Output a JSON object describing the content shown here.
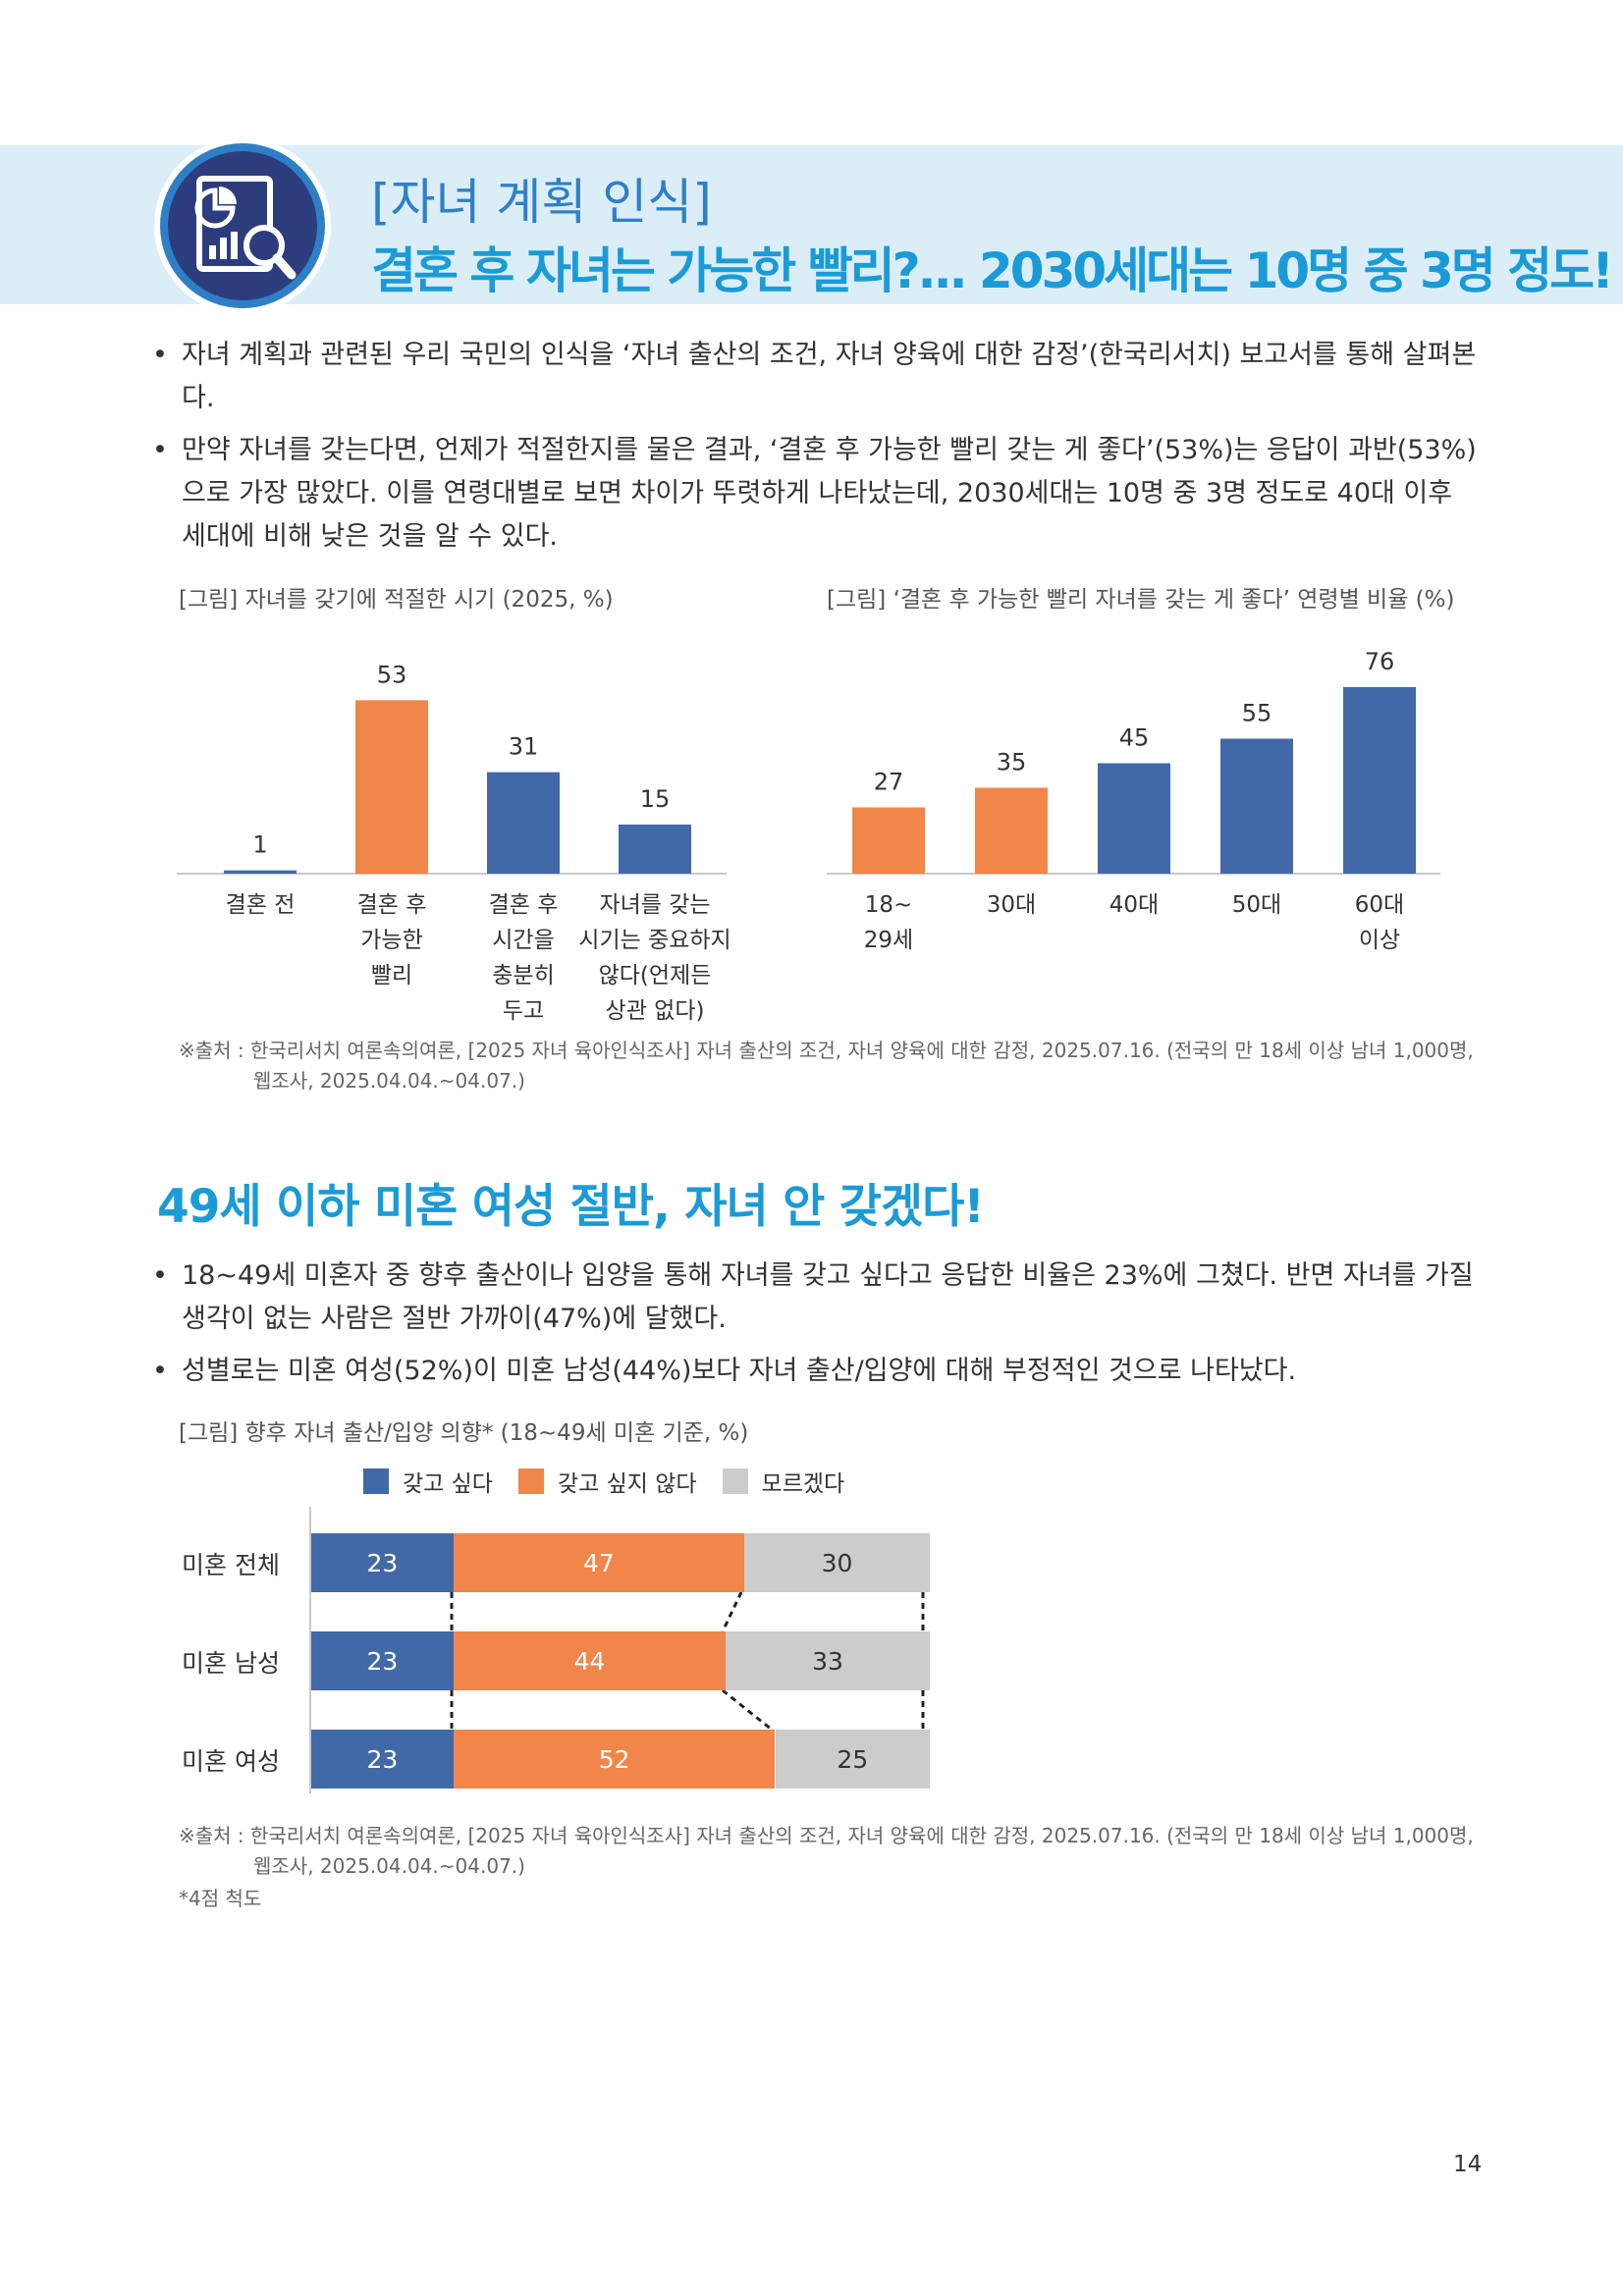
{
  "header": {
    "subtitle": "[자녀 계획 인식]",
    "title": "결혼 후 자녀는 가능한 빨리?... 2030세대는 10명 중 3명 정도!",
    "icon": "report-magnifier-icon"
  },
  "intro_bullets": [
    "자녀 계획과 관련된 우리 국민의 인식을 ‘자녀 출산의 조건, 자녀 양육에 대한 감정’(한국리서치) 보고서를 통해 살펴본다.",
    "만약 자녀를 갖는다면, 언제가 적절한지를 물은 결과, ‘결혼 후 가능한 빨리 갖는 게 좋다’(53%)는 응답이 과반(53%)으로 가장 많았다. 이를 연령대별로 보면 차이가 뚜렷하게 나타났는데, 2030세대는 10명 중 3명 정도로 40대 이후 세대에 비해 낮은 것을 알 수 있다."
  ],
  "figure1": {
    "caption": "[그림] 자녀를 갖기에 적절한 시기 (2025, %)"
  },
  "figure2": {
    "caption": "[그림] ‘결혼 후 가능한 빨리 자녀를 갖는 게 좋다’ 연령별 비율 (%)"
  },
  "source1": {
    "line1": "※출처 : 한국리서치 여론속의여론, [2025 자녀 육아인식조사] 자녀 출산의 조건, 자녀 양육에 대한 감정, 2025.07.16. (전국의 만 18세 이상 남녀 1,000명,",
    "line2": "웹조사, 2025.04.04.~04.07.)"
  },
  "section2": {
    "title": "49세 이하 미혼 여성 절반, 자녀 안 갖겠다!",
    "bullets": [
      "18~49세 미혼자 중 향후 출산이나 입양을 통해 자녀를 갖고 싶다고 응답한 비율은 23%에 그쳤다. 반면 자녀를 가질 생각이 없는 사람은 절반 가까이(47%)에 달했다.",
      "성별로는 미혼 여성(52%)이 미혼 남성(44%)보다 자녀 출산/입양에 대해 부정적인 것으로 나타났다."
    ]
  },
  "figure3": {
    "caption": "[그림] 향후 자녀 출산/입양 의향* (18~49세 미혼 기준, %)"
  },
  "source2": {
    "line1": "※출처 : 한국리서치 여론속의여론, [2025 자녀 육아인식조사] 자녀 출산의 조건, 자녀 양육에 대한 감정, 2025.07.16. (전국의 만 18세 이상 남녀 1,000명,",
    "line2": "웹조사, 2025.04.04.~04.07.)",
    "note": "*4점 척도"
  },
  "page_number": "14",
  "colors": {
    "blue": "#4169a8",
    "orange": "#f0864a",
    "gray": "#cccccc",
    "header_band": "#dbeef8",
    "title_blue": "#1a9bd7"
  },
  "chart_data": [
    {
      "type": "bar",
      "categories": [
        [
          "결혼 전"
        ],
        [
          "결혼 후",
          "가능한",
          "빨리"
        ],
        [
          "결혼 후",
          "시간을",
          "충분히",
          "두고"
        ],
        [
          "자녀를 갖는",
          "시기는 중요하지",
          "않다(언제든",
          "상관 없다)"
        ]
      ],
      "values": [
        1,
        53,
        31,
        15
      ],
      "highlight_index": 1,
      "ylim": [
        0,
        60
      ]
    },
    {
      "type": "bar",
      "categories": [
        [
          "18~",
          "29세"
        ],
        [
          "30대"
        ],
        [
          "40대"
        ],
        [
          "50대"
        ],
        [
          "60대",
          "이상"
        ]
      ],
      "values": [
        27,
        35,
        45,
        55,
        76
      ],
      "highlight_indices": [
        0,
        1
      ],
      "ylim": [
        0,
        80
      ]
    },
    {
      "type": "bar",
      "stacked": true,
      "orientation": "horizontal",
      "categories": [
        "미혼 전체",
        "미혼 남성",
        "미혼 여성"
      ],
      "series": [
        {
          "name": "갖고 싶다",
          "values": [
            23,
            23,
            23
          ]
        },
        {
          "name": "갖고 싶지 않다",
          "values": [
            47,
            44,
            52
          ]
        },
        {
          "name": "모르겠다",
          "values": [
            30,
            33,
            25
          ]
        }
      ],
      "legend": "top"
    }
  ]
}
